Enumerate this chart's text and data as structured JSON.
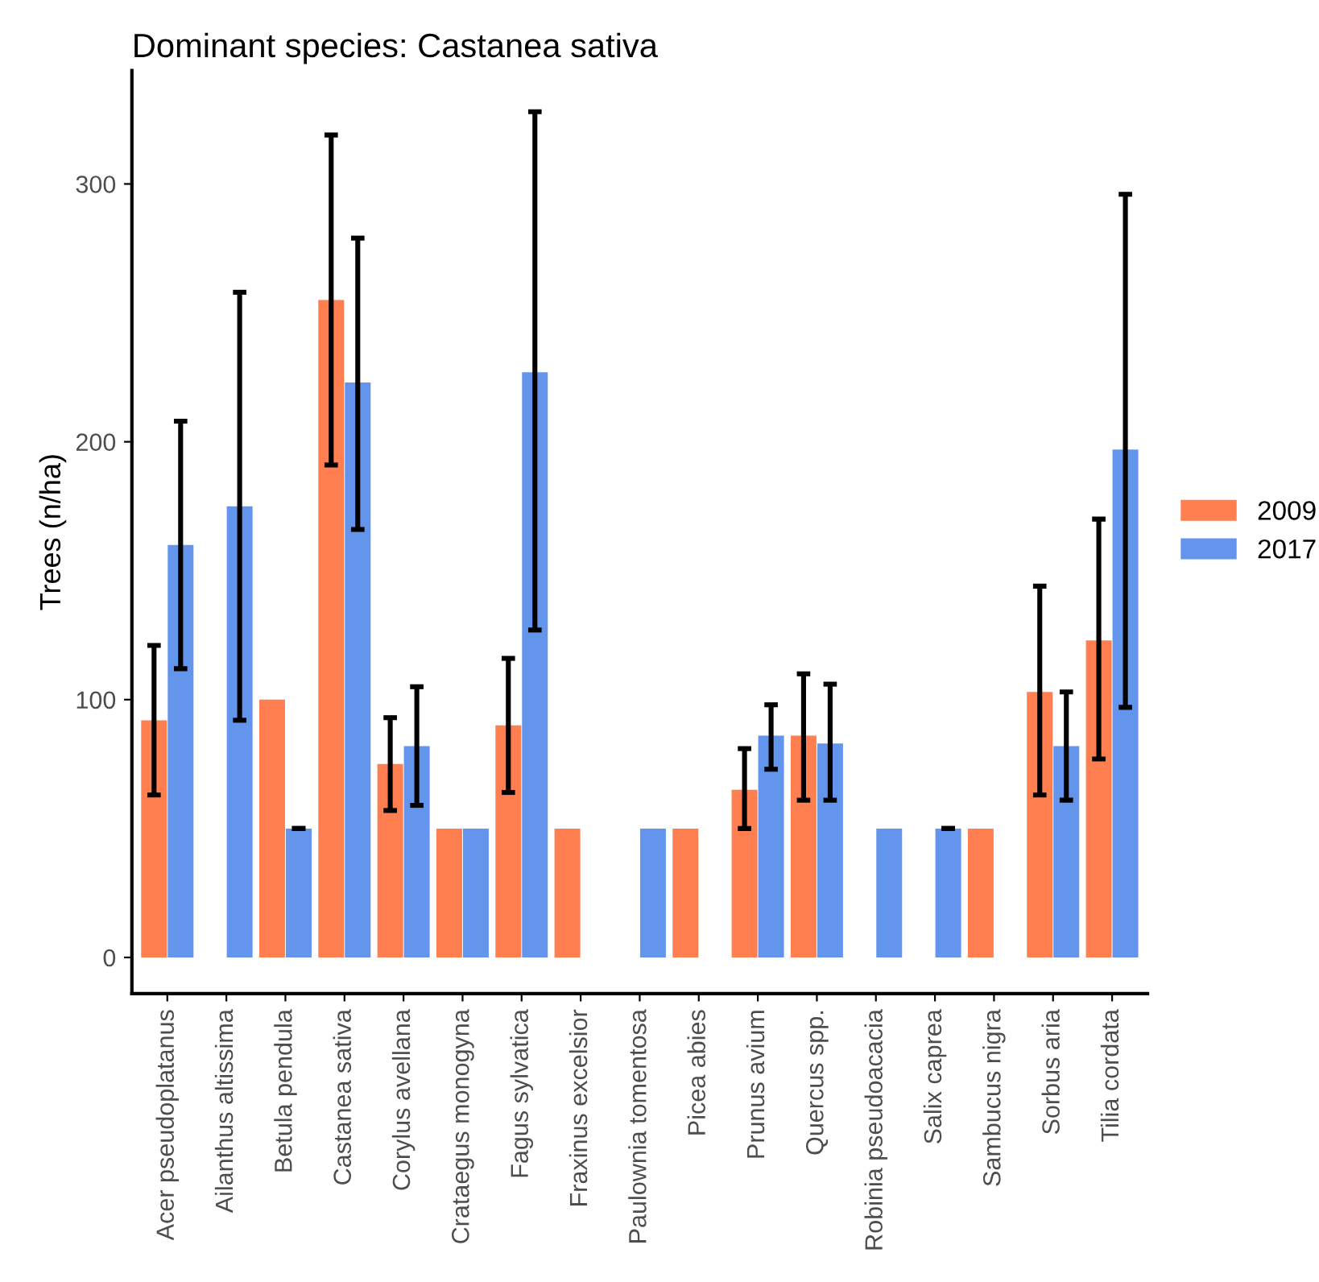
{
  "chart_data": {
    "type": "bar",
    "title": "Dominant species: Castanea sativa",
    "ylabel": "Trees (n/ha)",
    "categories": [
      "Acer pseudoplatanus",
      "Ailanthus altissima",
      "Betula pendula",
      "Castanea sativa",
      "Corylus avellana",
      "Crataegus monogyna",
      "Fagus sylvatica",
      "Fraxinus excelsior",
      "Paulownia tomentosa",
      "Picea abies",
      "Prunus avium",
      "Quercus spp.",
      "Robinia pseudoacacia",
      "Salix caprea",
      "Sambucus nigra",
      "Sorbus aria",
      "Tilia cordata"
    ],
    "series": [
      {
        "name": "2009",
        "color": "#ff7f50",
        "values": [
          92,
          null,
          100,
          255,
          75,
          50,
          90,
          50,
          null,
          50,
          65,
          86,
          null,
          null,
          50,
          103,
          123
        ],
        "errors": [
          [
            63,
            121
          ],
          null,
          null,
          [
            191,
            319
          ],
          [
            57,
            93
          ],
          null,
          [
            64,
            116
          ],
          null,
          null,
          null,
          [
            50,
            81
          ],
          [
            61,
            110
          ],
          null,
          null,
          null,
          [
            63,
            144
          ],
          [
            77,
            170
          ]
        ]
      },
      {
        "name": "2017",
        "color": "#6495ed",
        "values": [
          160,
          175,
          50,
          223,
          82,
          50,
          227,
          null,
          50,
          null,
          86,
          83,
          50,
          50,
          null,
          82,
          197
        ],
        "errors": [
          [
            112,
            208
          ],
          [
            92,
            258
          ],
          [
            50,
            50
          ],
          [
            166,
            279
          ],
          [
            59,
            105
          ],
          null,
          [
            127,
            328
          ],
          null,
          null,
          null,
          [
            73,
            98
          ],
          [
            61,
            106
          ],
          null,
          [
            50,
            50
          ],
          null,
          [
            61,
            103
          ],
          [
            97,
            296
          ]
        ]
      }
    ],
    "ylim": [
      -14,
      344
    ],
    "yticks": [
      0,
      100,
      200,
      300
    ],
    "grid": false,
    "legend": "right"
  }
}
